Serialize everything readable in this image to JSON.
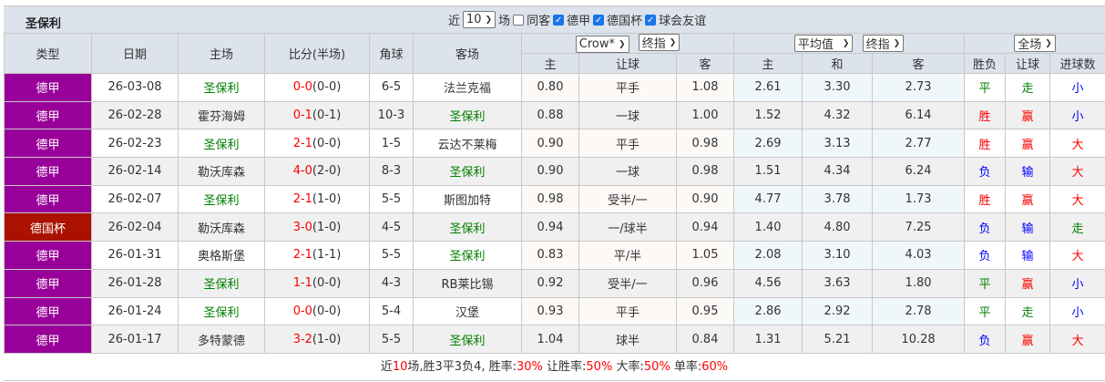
{
  "team": "圣保利",
  "filters": {
    "recent_label": "近",
    "count": "10",
    "unit": "场",
    "same_label": "同客",
    "same_checked": false,
    "leagues": [
      {
        "label": "德甲",
        "checked": true
      },
      {
        "label": "德国杯",
        "checked": true
      },
      {
        "label": "球会友谊",
        "checked": true
      }
    ]
  },
  "headers": {
    "type": "类型",
    "date": "日期",
    "home": "主场",
    "score": "比分(半场)",
    "corner": "角球",
    "away": "客场",
    "company": "Crow*",
    "odds_type1": "终指",
    "avg": "平均值",
    "odds_type2": "终指",
    "period": "全场",
    "h": "主",
    "hcp": "让球",
    "a": "客",
    "h2": "主",
    "d": "和",
    "a2": "客",
    "wl": "胜负",
    "hcp_res": "让球",
    "goals": "进球数"
  },
  "colors": {
    "league": "#990099",
    "cup": "#aa1100",
    "win": "#ff0000",
    "draw": "#008000",
    "loss": "#0000ff"
  },
  "rows": [
    {
      "type": "德甲",
      "cup": false,
      "date": "26-03-08",
      "home": "圣保利",
      "home_is_team": true,
      "ft": "0-0",
      "ht": "(0-0)",
      "corner": "6-5",
      "away": "法兰克福",
      "away_is_team": false,
      "h": "0.80",
      "hcp": "平手",
      "a": "1.08",
      "h2": "2.61",
      "d": "3.30",
      "a2": "2.73",
      "wl": "平",
      "hr": "走",
      "g": "小"
    },
    {
      "type": "德甲",
      "cup": false,
      "date": "26-02-28",
      "home": "霍芬海姆",
      "home_is_team": false,
      "ft": "0-1",
      "ht": "(0-1)",
      "corner": "10-3",
      "away": "圣保利",
      "away_is_team": true,
      "h": "0.88",
      "hcp": "一球",
      "a": "1.00",
      "h2": "1.52",
      "d": "4.32",
      "a2": "6.14",
      "wl": "胜",
      "hr": "赢",
      "g": "小"
    },
    {
      "type": "德甲",
      "cup": false,
      "date": "26-02-23",
      "home": "圣保利",
      "home_is_team": true,
      "ft": "2-1",
      "ht": "(0-0)",
      "corner": "1-5",
      "away": "云达不莱梅",
      "away_is_team": false,
      "h": "0.90",
      "hcp": "平手",
      "a": "0.98",
      "h2": "2.69",
      "d": "3.13",
      "a2": "2.77",
      "wl": "胜",
      "hr": "赢",
      "g": "大"
    },
    {
      "type": "德甲",
      "cup": false,
      "date": "26-02-14",
      "home": "勒沃库森",
      "home_is_team": false,
      "ft": "4-0",
      "ht": "(2-0)",
      "corner": "8-3",
      "away": "圣保利",
      "away_is_team": true,
      "h": "0.90",
      "hcp": "一球",
      "a": "0.98",
      "h2": "1.51",
      "d": "4.34",
      "a2": "6.24",
      "wl": "负",
      "hr": "输",
      "g": "大"
    },
    {
      "type": "德甲",
      "cup": false,
      "date": "26-02-07",
      "home": "圣保利",
      "home_is_team": true,
      "ft": "2-1",
      "ht": "(1-0)",
      "corner": "5-5",
      "away": "斯图加特",
      "away_is_team": false,
      "h": "0.98",
      "hcp": "受半/一",
      "a": "0.90",
      "h2": "4.77",
      "d": "3.78",
      "a2": "1.73",
      "wl": "胜",
      "hr": "赢",
      "g": "大"
    },
    {
      "type": "德国杯",
      "cup": true,
      "date": "26-02-04",
      "home": "勒沃库森",
      "home_is_team": false,
      "ft": "3-0",
      "ht": "(1-0)",
      "corner": "4-5",
      "away": "圣保利",
      "away_is_team": true,
      "h": "0.94",
      "hcp": "一/球半",
      "a": "0.94",
      "h2": "1.40",
      "d": "4.80",
      "a2": "7.25",
      "wl": "负",
      "hr": "输",
      "g": "走"
    },
    {
      "type": "德甲",
      "cup": false,
      "date": "26-01-31",
      "home": "奥格斯堡",
      "home_is_team": false,
      "ft": "2-1",
      "ht": "(1-1)",
      "corner": "5-5",
      "away": "圣保利",
      "away_is_team": true,
      "h": "0.83",
      "hcp": "平/半",
      "a": "1.05",
      "h2": "2.08",
      "d": "3.10",
      "a2": "4.03",
      "wl": "负",
      "hr": "输",
      "g": "大"
    },
    {
      "type": "德甲",
      "cup": false,
      "date": "26-01-28",
      "home": "圣保利",
      "home_is_team": true,
      "ft": "1-1",
      "ht": "(0-0)",
      "corner": "4-3",
      "away": "RB莱比锡",
      "away_is_team": false,
      "h": "0.92",
      "hcp": "受半/一",
      "a": "0.96",
      "h2": "4.56",
      "d": "3.63",
      "a2": "1.80",
      "wl": "平",
      "hr": "赢",
      "g": "小"
    },
    {
      "type": "德甲",
      "cup": false,
      "date": "26-01-24",
      "home": "圣保利",
      "home_is_team": true,
      "ft": "0-0",
      "ht": "(0-0)",
      "corner": "5-4",
      "away": "汉堡",
      "away_is_team": false,
      "h": "0.93",
      "hcp": "平手",
      "a": "0.95",
      "h2": "2.86",
      "d": "2.92",
      "a2": "2.78",
      "wl": "平",
      "hr": "走",
      "g": "小"
    },
    {
      "type": "德甲",
      "cup": false,
      "date": "26-01-17",
      "home": "多特蒙德",
      "home_is_team": false,
      "ft": "3-2",
      "ht": "(1-0)",
      "corner": "5-5",
      "away": "圣保利",
      "away_is_team": true,
      "h": "1.04",
      "hcp": "球半",
      "a": "0.84",
      "h2": "1.31",
      "d": "5.21",
      "a2": "10.28",
      "wl": "负",
      "hr": "赢",
      "g": "大"
    }
  ],
  "summary": {
    "p1": "近",
    "n": "10",
    "p2": "场,胜3平3负4, 胜率:",
    "win": "30%",
    "p3": " 让胜率:",
    "hwin": "50%",
    "p4": " 大率:",
    "big": "50%",
    "p5": " 单率:",
    "odd": "60%"
  }
}
